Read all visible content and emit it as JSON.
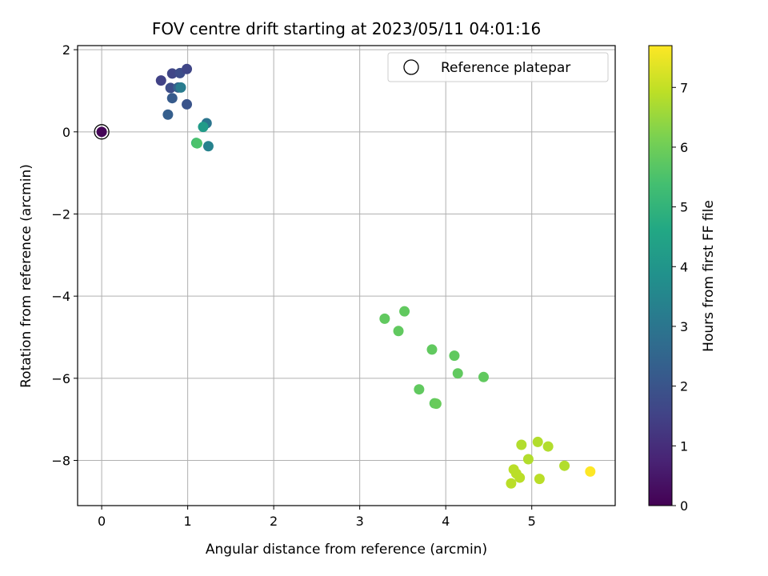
{
  "chart_data": {
    "type": "scatter",
    "title": "FOV centre drift starting at 2023/05/11 04:01:16",
    "xlabel": "Angular distance from reference (arcmin)",
    "ylabel": "Rotation from reference (arcmin)",
    "xlim": [
      -0.28,
      5.97
    ],
    "ylim": [
      -9.1,
      2.1
    ],
    "xticks": [
      0,
      1,
      2,
      3,
      4,
      5
    ],
    "yticks": [
      2,
      0,
      -2,
      -4,
      -6,
      -8
    ],
    "xtick_labels": [
      "0",
      "1",
      "2",
      "3",
      "4",
      "5"
    ],
    "ytick_labels": [
      "2",
      "0",
      "−2",
      "−4",
      "−6",
      "−8"
    ],
    "grid": true,
    "colormap": "viridis",
    "colorbar": {
      "label": "Hours from first FF file",
      "range": [
        0,
        7.7
      ],
      "ticks": [
        0,
        1,
        2,
        3,
        4,
        5,
        6,
        7
      ],
      "tick_labels": [
        "0",
        "1",
        "2",
        "3",
        "4",
        "5",
        "6",
        "7"
      ]
    },
    "legend": {
      "position": "upper right",
      "entries": [
        "Reference platepar"
      ]
    },
    "reference_point": {
      "x": 0,
      "y": 0
    },
    "points": [
      {
        "x": 0.0,
        "y": 0.0,
        "c": 0.1
      },
      {
        "x": 0.69,
        "y": 1.25,
        "c": 1.5
      },
      {
        "x": 0.82,
        "y": 1.42,
        "c": 1.6
      },
      {
        "x": 0.91,
        "y": 1.43,
        "c": 1.8
      },
      {
        "x": 0.99,
        "y": 1.53,
        "c": 1.6
      },
      {
        "x": 0.8,
        "y": 1.07,
        "c": 1.8
      },
      {
        "x": 0.89,
        "y": 1.08,
        "c": 2.4
      },
      {
        "x": 0.92,
        "y": 1.08,
        "c": 3.2
      },
      {
        "x": 0.82,
        "y": 0.82,
        "c": 2.2
      },
      {
        "x": 0.99,
        "y": 0.67,
        "c": 2.0
      },
      {
        "x": 0.77,
        "y": 0.42,
        "c": 2.3
      },
      {
        "x": 1.22,
        "y": 0.21,
        "c": 3.0
      },
      {
        "x": 1.18,
        "y": 0.12,
        "c": 4.2
      },
      {
        "x": 1.24,
        "y": -0.35,
        "c": 3.4
      },
      {
        "x": 1.1,
        "y": -0.27,
        "c": 5.2
      },
      {
        "x": 1.11,
        "y": -0.28,
        "c": 5.5
      },
      {
        "x": 3.29,
        "y": -4.55,
        "c": 5.8
      },
      {
        "x": 3.52,
        "y": -4.37,
        "c": 5.8
      },
      {
        "x": 3.45,
        "y": -4.85,
        "c": 5.8
      },
      {
        "x": 3.84,
        "y": -5.3,
        "c": 5.8
      },
      {
        "x": 4.1,
        "y": -5.45,
        "c": 5.8
      },
      {
        "x": 4.14,
        "y": -5.88,
        "c": 5.8
      },
      {
        "x": 4.44,
        "y": -5.97,
        "c": 5.8
      },
      {
        "x": 3.69,
        "y": -6.27,
        "c": 5.8
      },
      {
        "x": 3.87,
        "y": -6.61,
        "c": 5.8
      },
      {
        "x": 3.89,
        "y": -6.62,
        "c": 5.9
      },
      {
        "x": 4.88,
        "y": -7.62,
        "c": 6.8
      },
      {
        "x": 5.07,
        "y": -7.55,
        "c": 6.8
      },
      {
        "x": 5.19,
        "y": -7.66,
        "c": 6.8
      },
      {
        "x": 4.96,
        "y": -7.97,
        "c": 6.8
      },
      {
        "x": 5.38,
        "y": -8.13,
        "c": 6.8
      },
      {
        "x": 4.79,
        "y": -8.22,
        "c": 6.9
      },
      {
        "x": 4.82,
        "y": -8.32,
        "c": 6.9
      },
      {
        "x": 4.86,
        "y": -8.42,
        "c": 6.9
      },
      {
        "x": 4.76,
        "y": -8.56,
        "c": 6.9
      },
      {
        "x": 5.09,
        "y": -8.45,
        "c": 6.9
      },
      {
        "x": 5.68,
        "y": -8.27,
        "c": 7.7
      }
    ]
  }
}
